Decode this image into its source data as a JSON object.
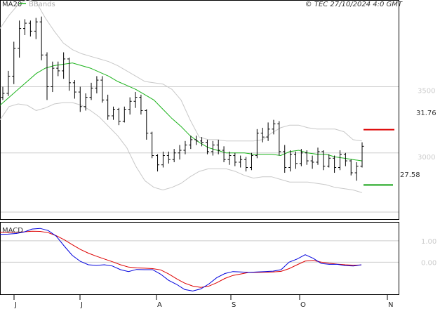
{
  "header": {
    "legend_ma": "MA20",
    "legend_bb": "BBands",
    "copyright": "© TEC 27/10/2024 4:0 GMT"
  },
  "colors": {
    "ma": "#1bb31b",
    "bands": "#c8c8c8",
    "price": "#000000",
    "resistance": "#dd0000",
    "support": "#11a011",
    "macd": "#0000dd",
    "signal": "#dd0000",
    "grid": "#cccccc"
  },
  "levels": {
    "resistance": {
      "value": 31.76,
      "label": "31.76"
    },
    "support": {
      "value": 27.58,
      "label": "27.58"
    }
  },
  "macd_panel": {
    "label": "MACD"
  },
  "chart_data": [
    {
      "type": "ohlc",
      "title": "",
      "y_ticks": [
        {
          "value": 35.0,
          "label": "3500"
        },
        {
          "value": 30.0,
          "label": "3000"
        }
      ],
      "x_ticks": [
        "J",
        "J",
        "A",
        "S",
        "O",
        "N"
      ],
      "ylim": [
        25.0,
        41.5
      ],
      "series": [
        {
          "name": "MA20",
          "values": [
            33.6,
            34.2,
            34.8,
            35.4,
            36.0,
            36.4,
            36.6,
            36.7,
            36.8,
            36.6,
            36.4,
            36.1,
            35.8,
            35.4,
            35.1,
            34.8,
            34.4,
            34.0,
            33.3,
            32.6,
            32.0,
            31.3,
            30.8,
            30.4,
            30.2,
            30.0,
            30.0,
            30.0,
            29.9,
            29.9,
            29.9,
            29.8,
            30.1,
            30.2,
            30.0,
            29.9,
            29.9,
            29.7,
            29.6,
            29.5,
            29.4
          ]
        },
        {
          "name": "BBands upper",
          "values": [
            39.4,
            40.4,
            41.2,
            41.6,
            41.4,
            40.2,
            39.2,
            38.3,
            37.8,
            37.5,
            37.3,
            37.1,
            36.9,
            36.6,
            36.2,
            35.8,
            35.4,
            35.3,
            35.2,
            34.8,
            34.0,
            32.5,
            31.2,
            31.0,
            31.0,
            30.9,
            30.9,
            30.9,
            30.9,
            31.0,
            31.5,
            31.9,
            32.1,
            32.1,
            31.9,
            31.8,
            31.8,
            31.8,
            31.6,
            31.0,
            30.9
          ]
        },
        {
          "name": "BBands lower",
          "values": [
            32.5,
            33.5,
            33.7,
            33.6,
            33.2,
            33.4,
            33.7,
            33.8,
            33.8,
            33.6,
            33.2,
            32.7,
            32.0,
            31.3,
            30.4,
            29.0,
            27.9,
            27.4,
            27.2,
            27.4,
            27.7,
            28.2,
            28.6,
            28.8,
            28.8,
            28.8,
            28.6,
            28.3,
            28.1,
            28.2,
            28.2,
            28.0,
            27.8,
            27.8,
            27.8,
            27.7,
            27.6,
            27.4,
            27.3,
            27.2,
            27.0
          ]
        }
      ],
      "ohlc": [
        [
          34.2,
          35.0,
          34.0,
          34.5
        ],
        [
          34.5,
          36.2,
          34.3,
          35.8
        ],
        [
          35.8,
          38.4,
          35.2,
          37.9
        ],
        [
          37.9,
          40.0,
          37.2,
          39.4
        ],
        [
          39.4,
          40.1,
          38.9,
          39.8
        ],
        [
          39.8,
          40.0,
          38.8,
          39.2
        ],
        [
          39.2,
          40.2,
          38.6,
          39.9
        ],
        [
          39.9,
          40.3,
          37.0,
          37.4
        ],
        [
          37.4,
          37.6,
          34.0,
          35.0
        ],
        [
          35.0,
          36.9,
          34.6,
          36.4
        ],
        [
          36.4,
          36.9,
          35.8,
          36.2
        ],
        [
          36.2,
          37.6,
          35.6,
          37.1
        ],
        [
          37.1,
          37.2,
          34.7,
          35.3
        ],
        [
          35.3,
          35.5,
          34.1,
          34.6
        ],
        [
          34.6,
          35.0,
          33.1,
          33.5
        ],
        [
          33.5,
          34.5,
          33.2,
          34.2
        ],
        [
          34.2,
          35.3,
          34.0,
          34.9
        ],
        [
          34.9,
          35.8,
          34.5,
          35.5
        ],
        [
          35.5,
          35.8,
          33.8,
          34.0
        ],
        [
          34.0,
          34.4,
          32.5,
          32.8
        ],
        [
          32.8,
          33.5,
          32.5,
          33.3
        ],
        [
          33.3,
          33.4,
          32.1,
          32.4
        ],
        [
          32.4,
          33.5,
          32.3,
          33.3
        ],
        [
          33.3,
          34.2,
          32.9,
          33.9
        ],
        [
          33.9,
          34.6,
          33.4,
          34.2
        ],
        [
          34.2,
          34.4,
          32.9,
          33.2
        ],
        [
          33.2,
          33.3,
          31.0,
          31.5
        ],
        [
          31.5,
          31.6,
          29.6,
          29.8
        ],
        [
          29.8,
          29.9,
          28.6,
          29.1
        ],
        [
          29.1,
          30.1,
          28.9,
          29.8
        ],
        [
          29.8,
          30.1,
          29.2,
          29.5
        ],
        [
          29.5,
          30.3,
          29.3,
          30.0
        ],
        [
          30.0,
          30.6,
          29.5,
          30.2
        ],
        [
          30.2,
          30.9,
          29.9,
          30.6
        ],
        [
          30.6,
          31.3,
          30.3,
          31.0
        ],
        [
          31.0,
          31.3,
          30.6,
          30.9
        ],
        [
          30.9,
          31.2,
          30.5,
          30.8
        ],
        [
          30.8,
          31.0,
          29.9,
          30.1
        ],
        [
          30.1,
          30.9,
          29.8,
          30.6
        ],
        [
          30.6,
          31.0,
          29.9,
          30.2
        ],
        [
          30.2,
          30.5,
          29.3,
          29.5
        ],
        [
          29.5,
          30.1,
          29.1,
          29.8
        ],
        [
          29.8,
          30.0,
          29.0,
          29.3
        ],
        [
          29.3,
          29.8,
          28.9,
          29.5
        ],
        [
          29.5,
          29.7,
          28.6,
          28.9
        ],
        [
          28.9,
          30.0,
          28.7,
          29.8
        ],
        [
          29.8,
          31.8,
          29.6,
          31.5
        ],
        [
          31.5,
          31.9,
          30.8,
          31.2
        ],
        [
          31.2,
          32.3,
          30.9,
          31.8
        ],
        [
          31.8,
          32.5,
          31.4,
          32.2
        ],
        [
          32.2,
          32.4,
          29.8,
          30.1
        ],
        [
          30.1,
          30.6,
          28.5,
          28.9
        ],
        [
          28.9,
          30.2,
          28.6,
          29.9
        ],
        [
          29.9,
          30.1,
          28.8,
          29.2
        ],
        [
          29.2,
          30.3,
          29.0,
          30.0
        ],
        [
          30.0,
          30.2,
          29.1,
          29.4
        ],
        [
          29.4,
          29.8,
          28.8,
          29.3
        ],
        [
          29.3,
          30.4,
          29.1,
          30.1
        ],
        [
          30.1,
          30.2,
          28.7,
          29.0
        ],
        [
          29.0,
          29.9,
          28.9,
          29.6
        ],
        [
          29.6,
          29.8,
          28.5,
          28.9
        ],
        [
          28.9,
          30.2,
          28.7,
          29.9
        ],
        [
          29.9,
          30.0,
          29.0,
          29.4
        ],
        [
          29.4,
          29.5,
          28.3,
          28.5
        ],
        [
          28.5,
          29.3,
          27.9,
          29.0
        ],
        [
          29.0,
          30.8,
          28.9,
          30.5
        ]
      ]
    },
    {
      "type": "line",
      "title": "MACD",
      "y_ticks": [
        {
          "value": 1.0,
          "label": "1.00"
        },
        {
          "value": 0.0,
          "label": "0.00"
        }
      ],
      "ylim": [
        -1.5,
        1.85
      ],
      "series": [
        {
          "name": "MACD",
          "values": [
            1.3,
            1.31,
            1.34,
            1.41,
            1.55,
            1.58,
            1.48,
            1.22,
            0.75,
            0.32,
            0.04,
            -0.12,
            -0.15,
            -0.12,
            -0.18,
            -0.35,
            -0.44,
            -0.34,
            -0.35,
            -0.35,
            -0.56,
            -0.85,
            -1.04,
            -1.28,
            -1.35,
            -1.25,
            -1.02,
            -0.72,
            -0.53,
            -0.44,
            -0.46,
            -0.48,
            -0.46,
            -0.44,
            -0.42,
            -0.35,
            0.0,
            0.15,
            0.35,
            0.18,
            -0.06,
            -0.1,
            -0.1,
            -0.16,
            -0.18,
            -0.12
          ]
        },
        {
          "name": "Signal",
          "values": [
            1.4,
            1.39,
            1.4,
            1.42,
            1.45,
            1.44,
            1.38,
            1.24,
            1.05,
            0.82,
            0.6,
            0.42,
            0.28,
            0.15,
            0.02,
            -0.12,
            -0.23,
            -0.27,
            -0.28,
            -0.3,
            -0.36,
            -0.55,
            -0.78,
            -0.98,
            -1.12,
            -1.18,
            -1.12,
            -0.96,
            -0.76,
            -0.62,
            -0.55,
            -0.48,
            -0.48,
            -0.47,
            -0.46,
            -0.43,
            -0.3,
            -0.12,
            0.05,
            0.08,
            0.0,
            -0.05,
            -0.09,
            -0.12,
            -0.14,
            -0.13
          ]
        }
      ]
    }
  ]
}
